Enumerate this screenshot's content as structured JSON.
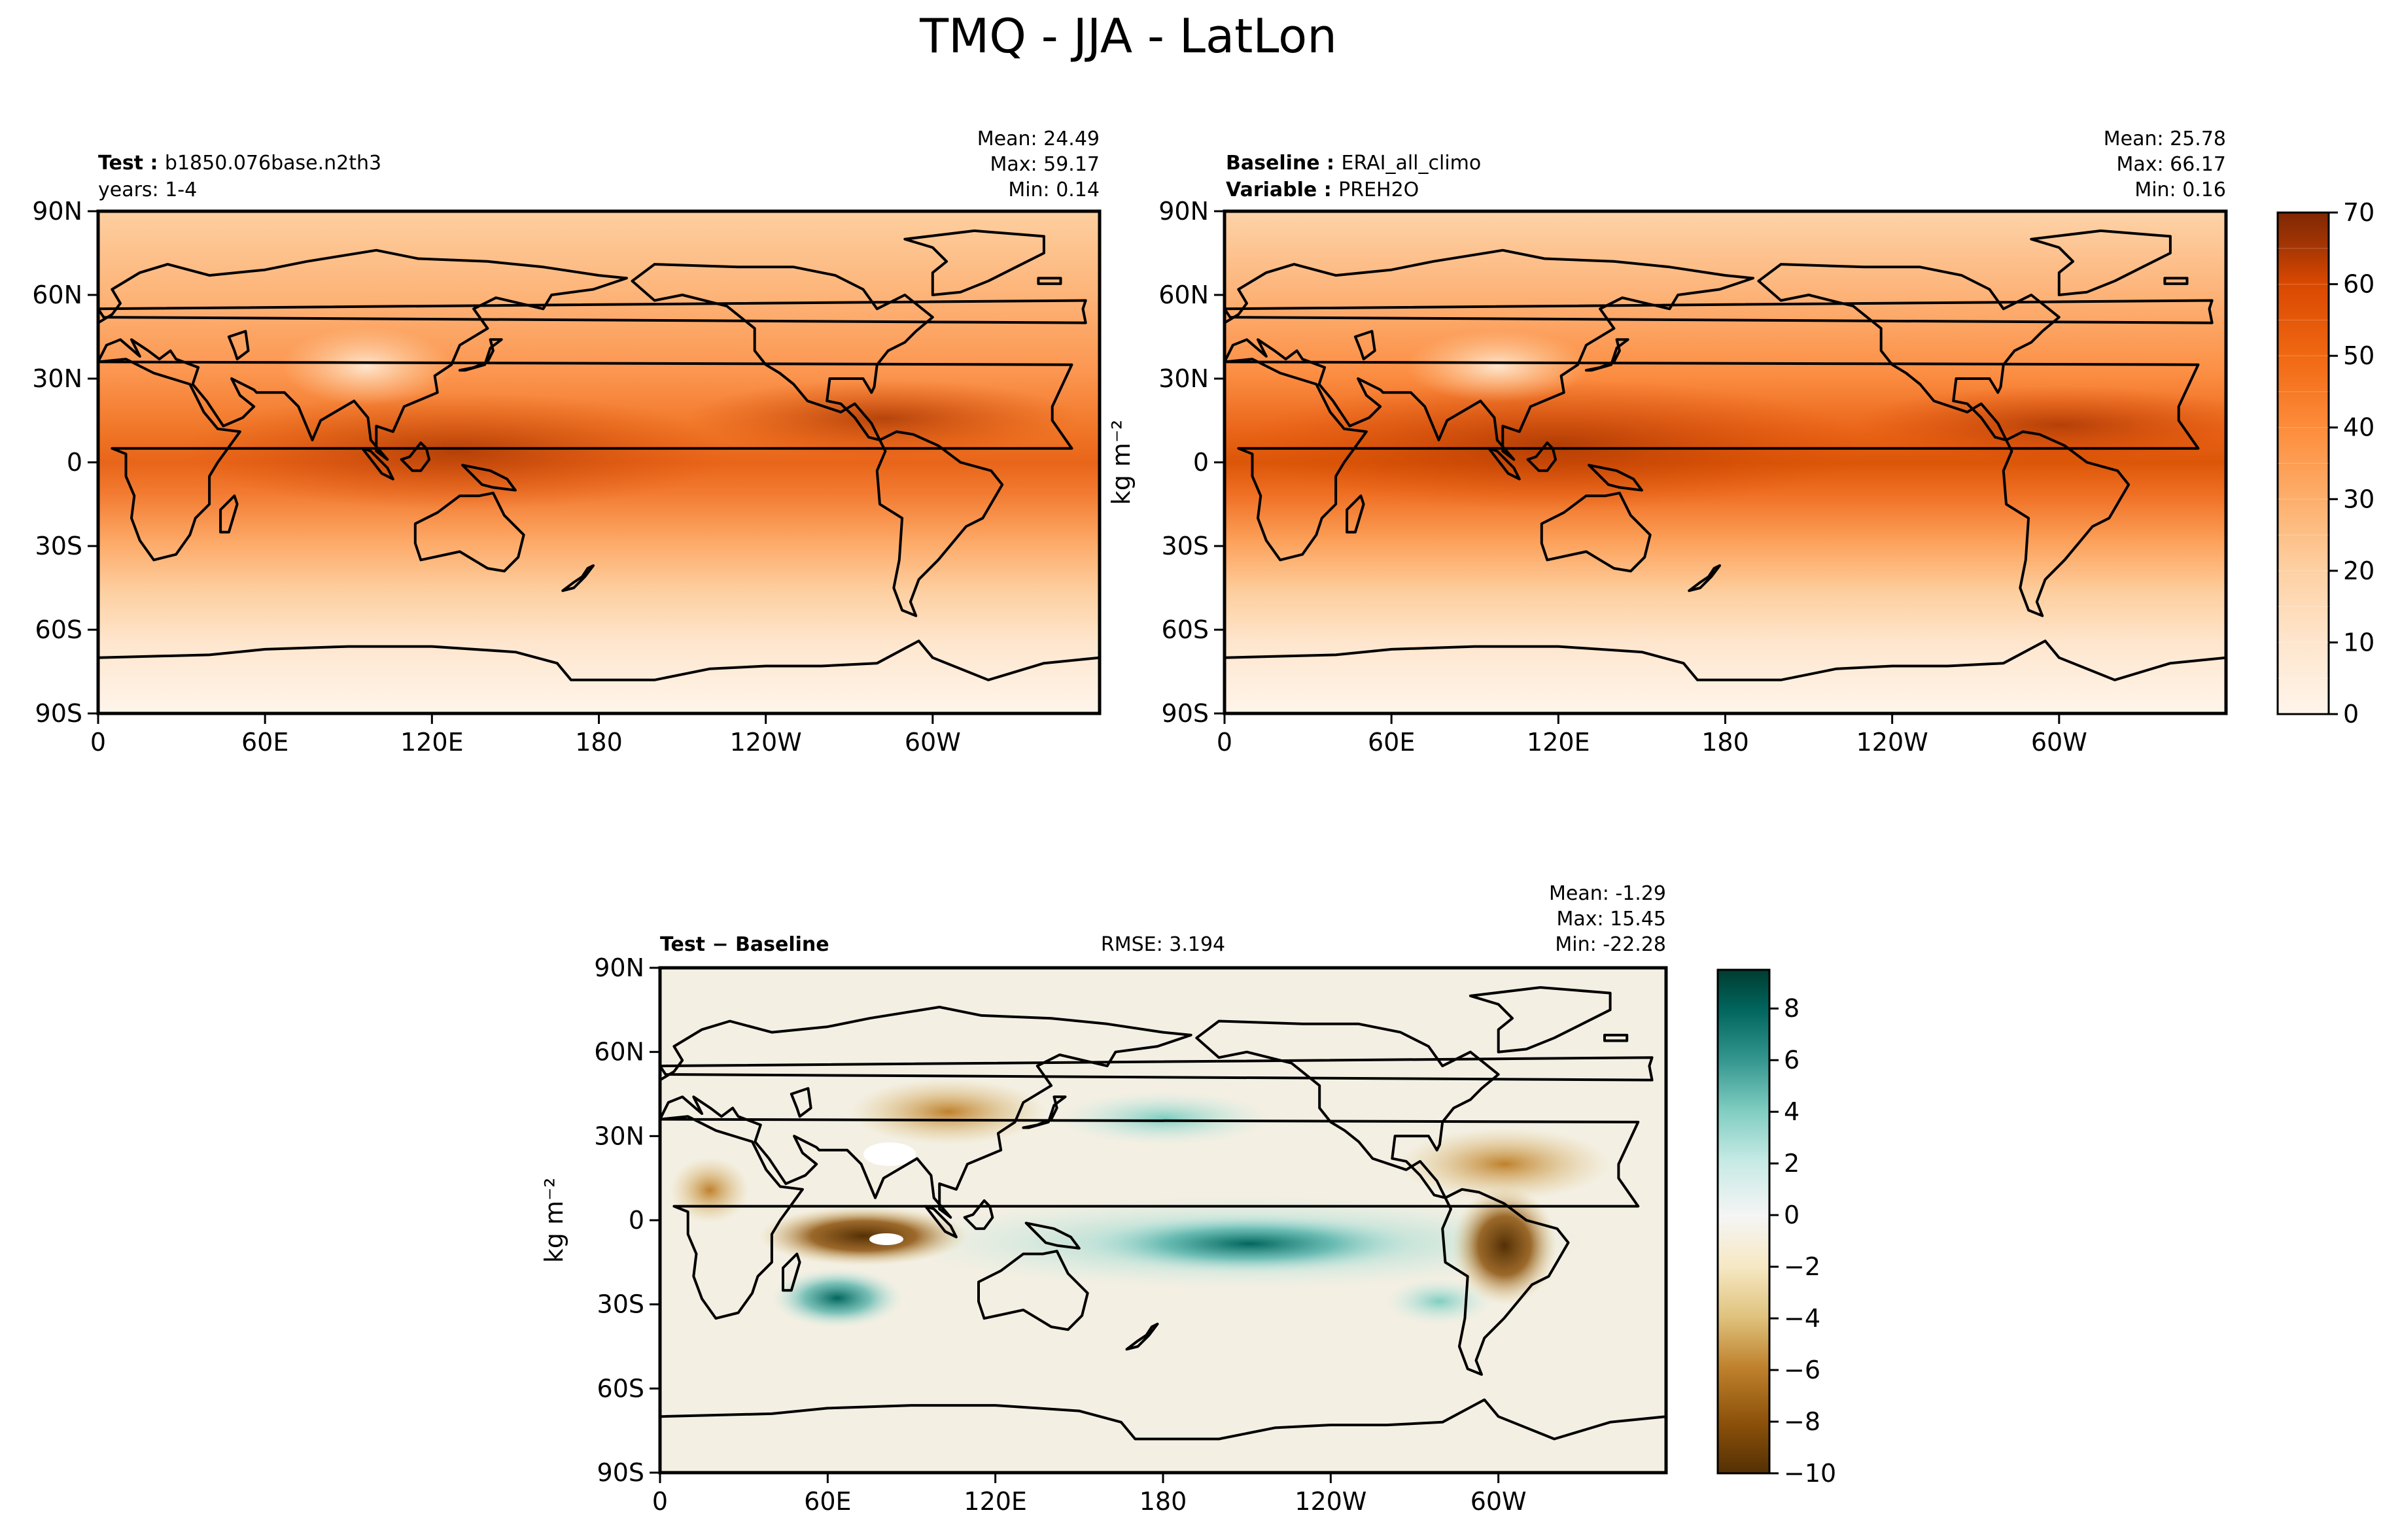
{
  "figure": {
    "title": "TMQ - JJA - LatLon"
  },
  "colors": {
    "oranges_scale": [
      "#fff5eb",
      "#fee6ce",
      "#fdd0a2",
      "#fdae6b",
      "#fd8d3c",
      "#f16913",
      "#d94801",
      "#a63603",
      "#7f2704"
    ],
    "brbg_scale": [
      "#543005",
      "#8c510a",
      "#bf812d",
      "#dfc27d",
      "#f6e8c3",
      "#f5f5f5",
      "#c7eae5",
      "#80cdc1",
      "#35978f",
      "#01665e",
      "#003c30"
    ],
    "coastline": "#000000"
  },
  "chart_data": [
    {
      "type": "heatmap",
      "id": "test",
      "name_label": "Test",
      "name_value": "b1850.076base.n2th3",
      "line2_label": "",
      "line2_value": "years: 1-4",
      "stats": {
        "mean": "Mean: 24.49",
        "max": "Max: 59.17",
        "min": "Min:  0.14"
      },
      "xticks": [
        "0",
        "60E",
        "120E",
        "180",
        "120W",
        "60W"
      ],
      "yticks": [
        "90N",
        "60N",
        "30N",
        "0",
        "30S",
        "60S",
        "90S"
      ],
      "xlim": [
        0,
        360
      ],
      "ylim": [
        -90,
        90
      ],
      "summary": {
        "mean": 24.49,
        "max": 59.17,
        "min": 0.14
      }
    },
    {
      "type": "heatmap",
      "id": "baseline",
      "name_label": "Baseline",
      "name_value": "ERAI_all_climo",
      "line2_label": "Variable",
      "line2_value": "PREH2O",
      "stats": {
        "mean": "Mean: 25.78",
        "max": "Max: 66.17",
        "min": "Min:  0.16"
      },
      "xticks": [
        "0",
        "60E",
        "120E",
        "180",
        "120W",
        "60W"
      ],
      "yticks": [
        "90N",
        "60N",
        "30N",
        "0",
        "30S",
        "60S",
        "90S"
      ],
      "xlim": [
        0,
        360
      ],
      "ylim": [
        -90,
        90
      ],
      "summary": {
        "mean": 25.78,
        "max": 66.17,
        "min": 0.16
      },
      "colorbar": {
        "ticks": [
          "0",
          "10",
          "20",
          "30",
          "40",
          "50",
          "60",
          "70"
        ],
        "range": [
          0,
          70
        ],
        "label": "kg m⁻²"
      }
    },
    {
      "type": "heatmap",
      "id": "diff",
      "name_label": "Test − Baseline",
      "rmse": "RMSE: 3.194",
      "stats": {
        "mean": "Mean: -1.29",
        "max": "Max: 15.45",
        "min": "Min: -22.28"
      },
      "xticks": [
        "0",
        "60E",
        "120E",
        "180",
        "120W",
        "60W"
      ],
      "yticks": [
        "90N",
        "60N",
        "30N",
        "0",
        "30S",
        "60S",
        "90S"
      ],
      "ylabel": "kg m⁻²",
      "xlim": [
        0,
        360
      ],
      "ylim": [
        -90,
        90
      ],
      "summary": {
        "mean": -1.29,
        "max": 15.45,
        "min": -22.28,
        "rmse": 3.194
      },
      "colorbar": {
        "ticks": [
          "8",
          "6",
          "4",
          "2",
          "0",
          "−2",
          "−4",
          "−6",
          "−8",
          "−10"
        ],
        "range": [
          -10,
          9.5
        ]
      }
    }
  ]
}
